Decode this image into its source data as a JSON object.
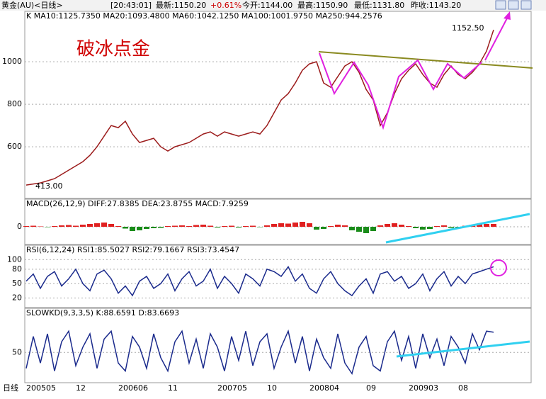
{
  "header": {
    "symbol": "黄金(AU)<日线>",
    "time": "[20:43:01]",
    "last": "最新:1150.20",
    "change": "+0.61%",
    "open": "今开:1144.00",
    "high": "最高:1150.90",
    "low": "最低:1131.80",
    "prev": "昨收:1143.20"
  },
  "period": "日线",
  "chart_data": [
    {
      "type": "line",
      "title": "K  MA10:1125.7350  MA20:1093.4800  MA60:1042.1250  MA100:1001.9750  MA250:944.2576",
      "annotation": "破冰点金",
      "high_label": "1152.50",
      "low_label": "413.00",
      "color": "#9c1c1c",
      "categories": [
        "200505",
        null,
        null,
        null,
        null,
        null,
        null,
        "12",
        null,
        null,
        null,
        null,
        null,
        "200606",
        null,
        null,
        null,
        null,
        null,
        null,
        "11",
        null,
        null,
        null,
        null,
        null,
        null,
        "200705",
        null,
        null,
        null,
        null,
        null,
        null,
        "10",
        null,
        null,
        null,
        null,
        null,
        "200804",
        null,
        null,
        null,
        null,
        null,
        null,
        null,
        "09",
        null,
        null,
        null,
        null,
        null,
        "200903",
        null,
        null,
        null,
        null,
        null,
        null,
        "08",
        null,
        null,
        null,
        null,
        null
      ],
      "values": [
        420,
        425,
        430,
        440,
        450,
        470,
        490,
        510,
        530,
        560,
        600,
        650,
        700,
        690,
        720,
        660,
        620,
        630,
        640,
        600,
        580,
        600,
        610,
        620,
        640,
        660,
        670,
        650,
        670,
        660,
        650,
        660,
        670,
        660,
        700,
        760,
        820,
        850,
        900,
        960,
        990,
        1000,
        900,
        880,
        930,
        980,
        1000,
        950,
        870,
        820,
        700,
        760,
        850,
        920,
        960,
        990,
        940,
        900,
        880,
        940,
        980,
        940,
        920,
        950,
        990,
        1050,
        1150
      ],
      "ylim": [
        357,
        1237
      ],
      "yticks": [
        600,
        800,
        1000
      ],
      "grid": true
    },
    {
      "type": "bar",
      "title": "MACD(26,12,9)  DIFF:27.8385  DEA:23.8755  MACD:7.9259",
      "color": "#e02020",
      "neg_color": "#1a8c1a",
      "values": [
        2,
        3,
        1,
        -1,
        2,
        4,
        5,
        3,
        6,
        8,
        10,
        12,
        8,
        2,
        -5,
        -12,
        -10,
        -6,
        -4,
        -3,
        2,
        3,
        4,
        2,
        5,
        6,
        3,
        -2,
        2,
        3,
        -2,
        2,
        3,
        -1,
        4,
        8,
        10,
        9,
        12,
        14,
        10,
        -8,
        -6,
        2,
        6,
        4,
        -10,
        -14,
        -18,
        -12,
        4,
        8,
        10,
        6,
        2,
        -4,
        -8,
        -6,
        2,
        4,
        -3,
        -2,
        3,
        6,
        9,
        8,
        8
      ],
      "ylim": [
        -50,
        78
      ],
      "yticks": [
        0
      ],
      "grid": true
    },
    {
      "type": "line",
      "title": "RSI(6,12,24)  RSI1:85.5027  RSI2:79.1667  RSI3:73.4547",
      "color": "#1a2a8c",
      "values": [
        55,
        70,
        40,
        65,
        75,
        45,
        60,
        80,
        50,
        35,
        70,
        78,
        60,
        30,
        45,
        25,
        55,
        65,
        40,
        50,
        70,
        35,
        60,
        75,
        45,
        55,
        80,
        40,
        65,
        50,
        30,
        70,
        60,
        45,
        80,
        75,
        65,
        85,
        55,
        70,
        40,
        30,
        60,
        75,
        50,
        35,
        25,
        45,
        60,
        30,
        70,
        75,
        55,
        65,
        40,
        50,
        70,
        35,
        60,
        75,
        45,
        65,
        50,
        70,
        75,
        80,
        85
      ],
      "ylim": [
        0,
        130
      ],
      "yticks": [
        20,
        50,
        80,
        100
      ],
      "grid": true
    },
    {
      "type": "line",
      "title": "SLOWKD(9,3,3,5)  K:88.6591  D:83.6693",
      "color": "#1a2a8c",
      "values": [
        20,
        80,
        30,
        85,
        15,
        70,
        90,
        25,
        60,
        85,
        20,
        75,
        90,
        30,
        15,
        80,
        60,
        20,
        85,
        40,
        15,
        70,
        90,
        30,
        75,
        20,
        85,
        60,
        15,
        80,
        35,
        90,
        25,
        70,
        85,
        20,
        60,
        90,
        30,
        80,
        15,
        75,
        40,
        20,
        85,
        30,
        10,
        60,
        80,
        25,
        15,
        70,
        90,
        35,
        80,
        20,
        85,
        40,
        75,
        25,
        80,
        60,
        30,
        85,
        55,
        90,
        88
      ],
      "ylim": [
        -7,
        133
      ],
      "yticks": [
        50
      ],
      "grid": true
    }
  ]
}
